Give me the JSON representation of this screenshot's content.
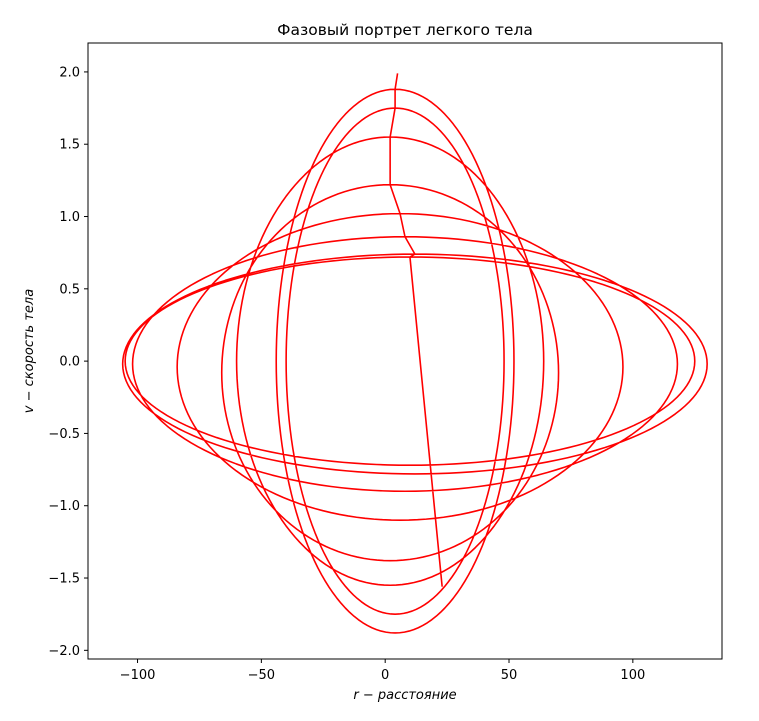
{
  "chart_data": {
    "type": "line",
    "title": "Фазовый портрет легкого тела",
    "xlabel": "r − расстояние",
    "ylabel": "v − скорость тела",
    "xlim": [
      -120,
      136
    ],
    "ylim": [
      -2.06,
      2.2
    ],
    "xticks": [
      -100,
      -50,
      0,
      50,
      100
    ],
    "yticks": [
      -2.0,
      -1.5,
      -1.0,
      -0.5,
      0.0,
      0.5,
      1.0,
      1.5,
      2.0
    ],
    "xtick_labels": [
      "−100",
      "−50",
      "0",
      "50",
      "100"
    ],
    "ytick_labels": [
      "−2.0",
      "−1.5",
      "−1.0",
      "−0.5",
      "0.0",
      "0.5",
      "1.0",
      "1.5",
      "2.0"
    ],
    "grid": false,
    "series": [
      {
        "color": "#ff0000",
        "loops": [
          {
            "xc": 4,
            "rx": 48,
            "ry": 1.88,
            "vc": 0.0
          },
          {
            "xc": 4,
            "rx": 44,
            "ry": 1.75,
            "vc": 0.0
          },
          {
            "xc": 2,
            "rx": 62,
            "ry": 1.55,
            "vc": 0.0
          },
          {
            "xc": 2,
            "rx": 68,
            "ry": 1.3,
            "vc": -0.08
          },
          {
            "xc": 6,
            "rx": 90,
            "ry": 1.06,
            "vc": -0.04
          },
          {
            "xc": 8,
            "rx": 110,
            "ry": 0.88,
            "vc": -0.02
          },
          {
            "xc": 12,
            "rx": 118,
            "ry": 0.76,
            "vc": -0.02
          },
          {
            "xc": 10,
            "rx": 115,
            "ry": 0.72,
            "vc": 0.0
          }
        ],
        "start": {
          "x": 5,
          "v": 1.99
        },
        "end": {
          "x": 23,
          "v": -1.56
        }
      }
    ]
  }
}
